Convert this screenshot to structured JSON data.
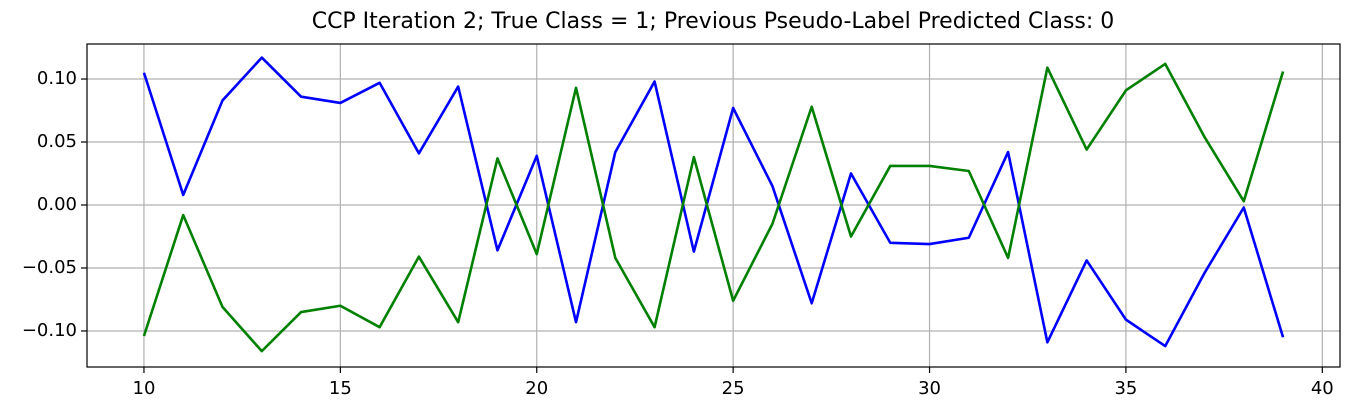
{
  "chart_data": {
    "type": "line",
    "title": "CCP Iteration 2; True Class = 1; Previous Pseudo-Label Predicted Class: 0",
    "x": [
      10,
      11,
      12,
      13,
      14,
      15,
      16,
      17,
      18,
      19,
      20,
      21,
      22,
      23,
      24,
      25,
      26,
      27,
      28,
      29,
      30,
      31,
      32,
      33,
      34,
      35,
      36,
      37,
      38,
      39
    ],
    "series": [
      {
        "color": "#0000ff",
        "values": [
          0.105,
          0.008,
          0.083,
          0.117,
          0.086,
          0.081,
          0.097,
          0.041,
          0.094,
          -0.036,
          0.039,
          -0.093,
          0.042,
          0.098,
          -0.037,
          0.077,
          0.015,
          -0.078,
          0.025,
          -0.03,
          -0.031,
          -0.026,
          0.042,
          -0.109,
          -0.044,
          -0.091,
          -0.112,
          -0.054,
          -0.002,
          -0.105
        ]
      },
      {
        "color": "#008000",
        "values": [
          -0.104,
          -0.008,
          -0.081,
          -0.116,
          -0.085,
          -0.08,
          -0.097,
          -0.041,
          -0.093,
          0.037,
          -0.039,
          0.093,
          -0.042,
          -0.097,
          0.038,
          -0.076,
          -0.015,
          0.078,
          -0.025,
          0.031,
          0.031,
          0.027,
          -0.042,
          0.109,
          0.044,
          0.091,
          0.112,
          0.054,
          0.003,
          0.106
        ]
      }
    ],
    "xlim": [
      8.55,
      40.45
    ],
    "xticks": [
      10,
      15,
      20,
      25,
      30,
      35,
      40
    ],
    "ylim": [
      -0.1286,
      0.1278
    ],
    "yticks": [
      {
        "value": -0.1,
        "label": "−0.10"
      },
      {
        "value": -0.05,
        "label": "−0.05"
      },
      {
        "value": 0,
        "label": "0.00"
      },
      {
        "value": 0.05,
        "label": "0.05"
      },
      {
        "value": 0.1,
        "label": "0.10"
      }
    ],
    "grid": true
  }
}
